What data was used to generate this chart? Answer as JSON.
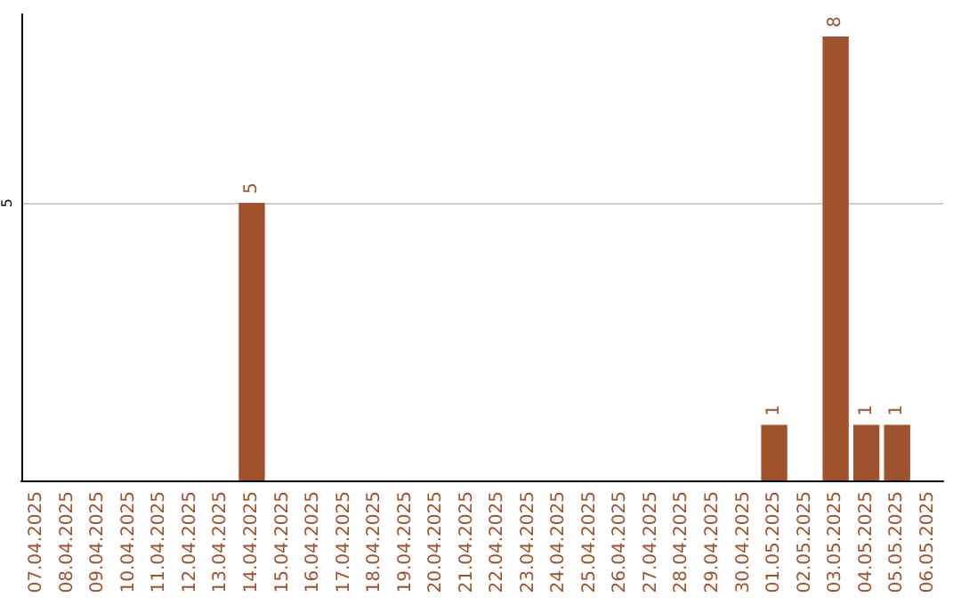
{
  "chart_data": {
    "type": "bar",
    "categories": [
      "07.04.2025",
      "08.04.2025",
      "09.04.2025",
      "10.04.2025",
      "11.04.2025",
      "12.04.2025",
      "13.04.2025",
      "14.04.2025",
      "15.04.2025",
      "16.04.2025",
      "17.04.2025",
      "18.04.2025",
      "19.04.2025",
      "20.04.2025",
      "21.04.2025",
      "22.04.2025",
      "23.04.2025",
      "24.04.2025",
      "25.04.2025",
      "26.04.2025",
      "27.04.2025",
      "28.04.2025",
      "29.04.2025",
      "30.04.2025",
      "01.05.2025",
      "02.05.2025",
      "03.05.2025",
      "04.05.2025",
      "05.05.2025",
      "06.05.2025"
    ],
    "values": [
      0,
      0,
      0,
      0,
      0,
      0,
      0,
      5,
      0,
      0,
      0,
      0,
      0,
      0,
      0,
      0,
      0,
      0,
      0,
      0,
      0,
      0,
      0,
      0,
      1,
      0,
      8,
      1,
      1,
      0
    ],
    "color": "#a0522d",
    "value_labels": [
      null,
      null,
      null,
      null,
      null,
      null,
      null,
      "5",
      null,
      null,
      null,
      null,
      null,
      null,
      null,
      null,
      null,
      null,
      null,
      null,
      null,
      null,
      null,
      null,
      "1",
      null,
      "8",
      "1",
      "1",
      null
    ],
    "ylim": [
      0,
      8.4
    ],
    "yticks": [
      5
    ],
    "grid": "y"
  }
}
